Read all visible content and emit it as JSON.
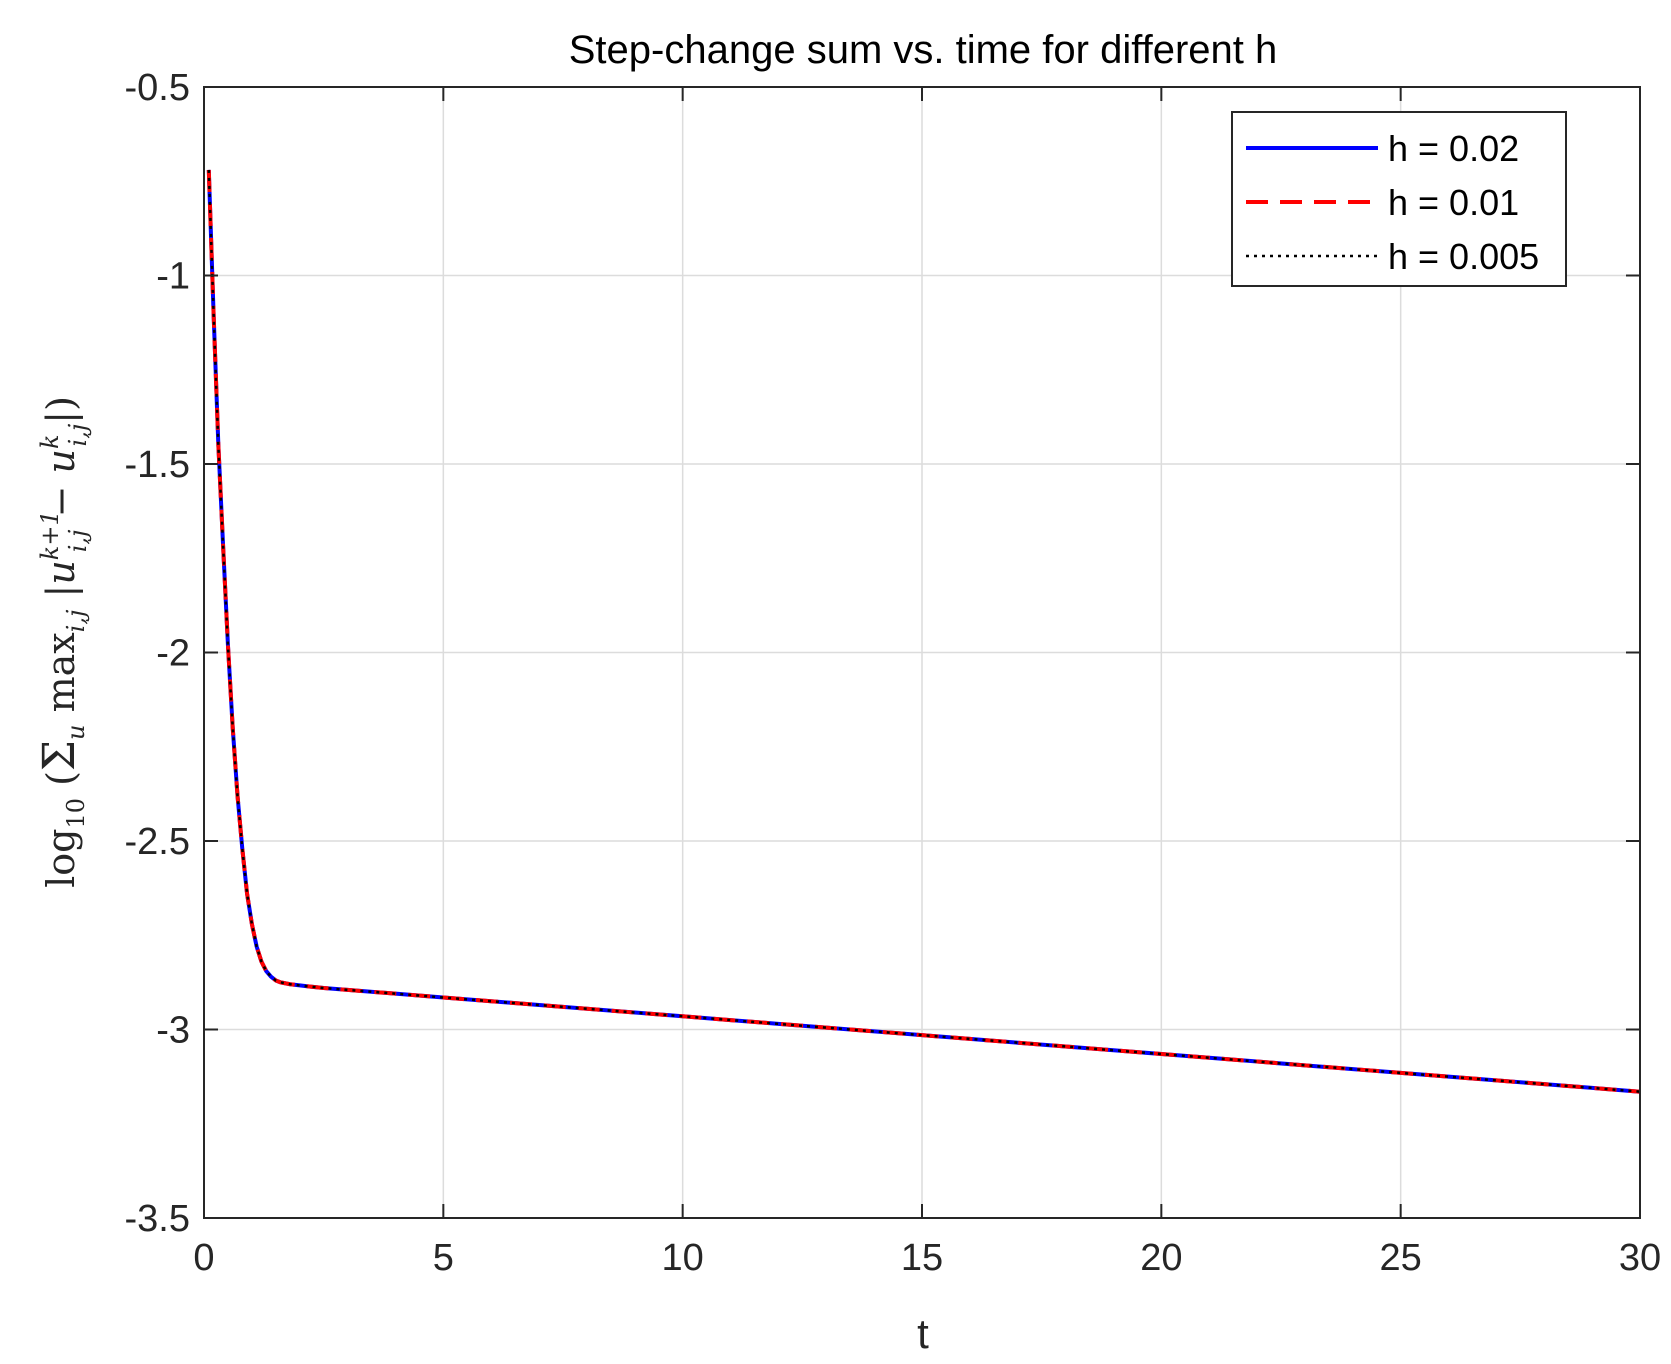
{
  "chart_data": {
    "type": "line",
    "title": "Step-change sum vs. time for different h",
    "xlabel": "t",
    "ylabel": "log10(Σu maxi,j |u(k+1)i,j − u(k)i,j|)",
    "xlim": [
      0,
      30
    ],
    "ylim": [
      -3.5,
      -0.5
    ],
    "xticks": [
      0,
      5,
      10,
      15,
      20,
      25,
      30
    ],
    "yticks": [
      -3.5,
      -3,
      -2.5,
      -2,
      -1.5,
      -1,
      -0.5
    ],
    "xtick_labels": [
      "0",
      "5",
      "10",
      "15",
      "20",
      "25",
      "30"
    ],
    "ytick_labels": [
      "-3.5",
      "-3",
      "-2.5",
      "-2",
      "-1.5",
      "-1",
      "-0.5"
    ],
    "grid": true,
    "legend_position": "top-right",
    "x": [
      0.1,
      0.2,
      0.3,
      0.4,
      0.5,
      0.6,
      0.7,
      0.8,
      0.9,
      1.0,
      1.1,
      1.2,
      1.3,
      1.4,
      1.5,
      1.6,
      1.8,
      2.0,
      2.2,
      2.5,
      3,
      4,
      5,
      6,
      7,
      8,
      9,
      10,
      11,
      12,
      13,
      14,
      15,
      16,
      17,
      18,
      19,
      20,
      21,
      22,
      23,
      24,
      25,
      26,
      27,
      28,
      29,
      30
    ],
    "series": [
      {
        "name": "h = 0.02",
        "color": "#0000ff",
        "dash": "solid",
        "values": [
          -0.72,
          -1.1,
          -1.45,
          -1.72,
          -1.98,
          -2.2,
          -2.38,
          -2.52,
          -2.64,
          -2.72,
          -2.78,
          -2.82,
          -2.845,
          -2.86,
          -2.87,
          -2.875,
          -2.88,
          -2.883,
          -2.886,
          -2.89,
          -2.895,
          -2.905,
          -2.915,
          -2.925,
          -2.935,
          -2.945,
          -2.955,
          -2.965,
          -2.975,
          -2.985,
          -2.995,
          -3.005,
          -3.015,
          -3.025,
          -3.035,
          -3.045,
          -3.055,
          -3.065,
          -3.075,
          -3.085,
          -3.095,
          -3.105,
          -3.115,
          -3.125,
          -3.135,
          -3.145,
          -3.155,
          -3.165
        ]
      },
      {
        "name": "h = 0.01",
        "color": "#ff0000",
        "dash": "dashed",
        "values": [
          -0.72,
          -1.1,
          -1.45,
          -1.72,
          -1.98,
          -2.2,
          -2.38,
          -2.52,
          -2.64,
          -2.72,
          -2.78,
          -2.82,
          -2.845,
          -2.86,
          -2.87,
          -2.875,
          -2.88,
          -2.883,
          -2.886,
          -2.89,
          -2.895,
          -2.905,
          -2.915,
          -2.925,
          -2.935,
          -2.945,
          -2.955,
          -2.965,
          -2.975,
          -2.985,
          -2.995,
          -3.005,
          -3.015,
          -3.025,
          -3.035,
          -3.045,
          -3.055,
          -3.065,
          -3.075,
          -3.085,
          -3.095,
          -3.105,
          -3.115,
          -3.125,
          -3.135,
          -3.145,
          -3.155,
          -3.165
        ]
      },
      {
        "name": "h = 0.005",
        "color": "#000000",
        "dash": "dotted",
        "values": [
          -0.72,
          -1.1,
          -1.45,
          -1.72,
          -1.98,
          -2.2,
          -2.38,
          -2.52,
          -2.64,
          -2.72,
          -2.78,
          -2.82,
          -2.845,
          -2.86,
          -2.87,
          -2.875,
          -2.88,
          -2.883,
          -2.886,
          -2.89,
          -2.895,
          -2.905,
          -2.915,
          -2.925,
          -2.935,
          -2.945,
          -2.955,
          -2.965,
          -2.975,
          -2.985,
          -2.995,
          -3.005,
          -3.015,
          -3.025,
          -3.035,
          -3.045,
          -3.055,
          -3.065,
          -3.075,
          -3.085,
          -3.095,
          -3.105,
          -3.115,
          -3.125,
          -3.135,
          -3.145,
          -3.155,
          -3.165
        ]
      }
    ]
  }
}
